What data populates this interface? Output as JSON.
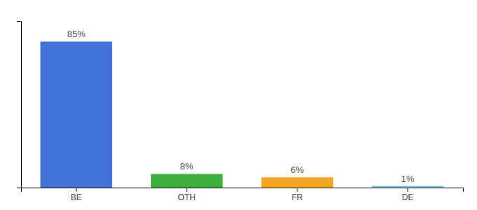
{
  "chart_data": {
    "type": "bar",
    "categories": [
      "BE",
      "OTH",
      "FR",
      "DE"
    ],
    "values": [
      85,
      8,
      6,
      1
    ],
    "value_labels": [
      "85%",
      "8%",
      "6%",
      "1%"
    ],
    "colors": [
      "#4472db",
      "#3faf3f",
      "#f5a623",
      "#7ec8e3"
    ],
    "ylim": [
      0,
      97
    ],
    "data_labels": true,
    "tick_labels": "x"
  }
}
